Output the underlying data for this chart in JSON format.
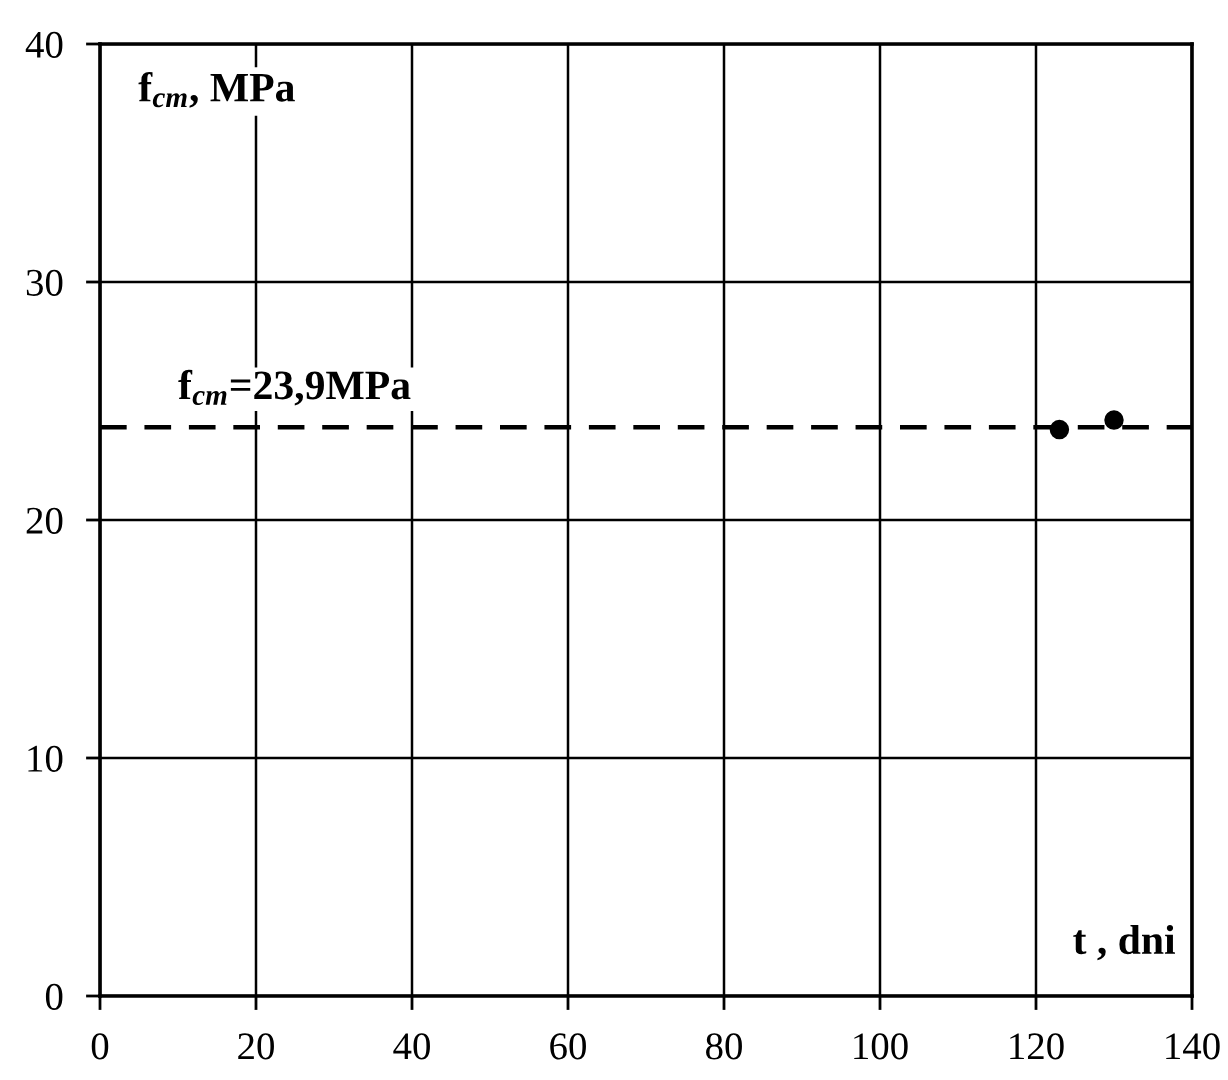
{
  "chart_data": {
    "type": "scatter",
    "xlabel": "t , dni",
    "ylabel": "f$_{cm}$, MPa",
    "x": [
      123,
      130
    ],
    "values": [
      23.8,
      24.2
    ],
    "color": "#000000",
    "marker": "circle",
    "xlim": [
      0,
      140
    ],
    "xticks": [
      0,
      20,
      40,
      60,
      80,
      100,
      120,
      140
    ],
    "ylim": [
      0,
      40
    ],
    "yticks": [
      0,
      10,
      20,
      30,
      40
    ],
    "grid": true,
    "ref_lines": [
      {
        "axis": "y",
        "value": 23.9,
        "label": "f$_{cm}$=23,9MPa",
        "color": "#000000",
        "line_style": "dashed"
      }
    ]
  }
}
